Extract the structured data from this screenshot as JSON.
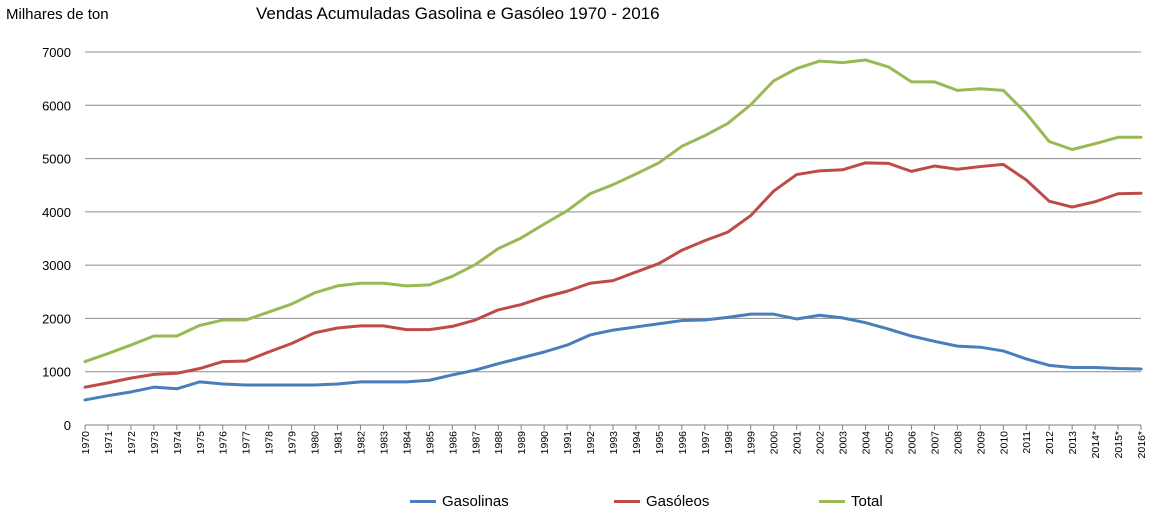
{
  "header": {
    "unit_label": "Milhares de ton",
    "title": "Vendas Acumuladas Gasolina e Gasóleo 1970 - 2016"
  },
  "chart_data": {
    "type": "line",
    "title": "Vendas Acumuladas Gasolina e Gasóleo 1970 - 2016",
    "ylabel": "Milhares de ton",
    "xlabel": "",
    "ylim": [
      0,
      7000
    ],
    "yticks": [
      0,
      1000,
      2000,
      3000,
      4000,
      5000,
      6000,
      7000
    ],
    "grid": true,
    "legend_position": "bottom",
    "categories": [
      "1970",
      "1971",
      "1972",
      "1973",
      "1974",
      "1975",
      "1976",
      "1977",
      "1978",
      "1979",
      "1980",
      "1981",
      "1982",
      "1983",
      "1984",
      "1985",
      "1986",
      "1987",
      "1988",
      "1989",
      "1990",
      "1991",
      "1992",
      "1993",
      "1994",
      "1995",
      "1996",
      "1997",
      "1998",
      "1999",
      "2000",
      "2001",
      "2002",
      "2003",
      "2004",
      "2005",
      "2006",
      "2007",
      "2008",
      "2009",
      "2010",
      "2011",
      "2012",
      "2013",
      "2014*",
      "2015*",
      "2016*"
    ],
    "series": [
      {
        "name": "Gasolinas",
        "color": "#4a7ebb",
        "values": [
          470,
          550,
          620,
          710,
          680,
          810,
          770,
          750,
          750,
          750,
          750,
          770,
          810,
          810,
          810,
          840,
          940,
          1030,
          1150,
          1260,
          1370,
          1500,
          1690,
          1780,
          1840,
          1900,
          1960,
          1970,
          2020,
          2080,
          2080,
          1990,
          2060,
          2010,
          1920,
          1800,
          1670,
          1570,
          1480,
          1460,
          1390,
          1240,
          1120,
          1080,
          1080,
          1060,
          1050
        ]
      },
      {
        "name": "Gasóleos",
        "color": "#be4b48",
        "values": [
          710,
          790,
          880,
          950,
          970,
          1060,
          1190,
          1200,
          1370,
          1530,
          1730,
          1820,
          1860,
          1860,
          1790,
          1790,
          1850,
          1970,
          2160,
          2260,
          2400,
          2510,
          2660,
          2710,
          2870,
          3030,
          3280,
          3460,
          3620,
          3930,
          4390,
          4700,
          4770,
          4790,
          4920,
          4910,
          4760,
          4860,
          4800,
          4850,
          4890,
          4600,
          4200,
          4090,
          4190,
          4340,
          4350
        ]
      },
      {
        "name": "Total",
        "color": "#98b954",
        "values": [
          1190,
          1340,
          1500,
          1670,
          1670,
          1870,
          1970,
          1970,
          2120,
          2270,
          2480,
          2610,
          2660,
          2660,
          2610,
          2630,
          2790,
          3010,
          3310,
          3510,
          3770,
          4020,
          4340,
          4510,
          4710,
          4920,
          5230,
          5430,
          5660,
          6010,
          6460,
          6690,
          6830,
          6800,
          6850,
          6720,
          6440,
          6440,
          6280,
          6310,
          6280,
          5850,
          5320,
          5170,
          5280,
          5400,
          5400
        ]
      }
    ]
  }
}
